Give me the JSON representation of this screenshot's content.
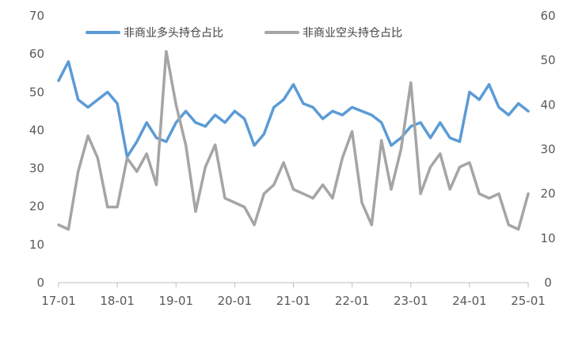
{
  "chart_data": {
    "type": "line",
    "x": [
      "17-01",
      "17-03",
      "17-05",
      "17-07",
      "17-09",
      "17-11",
      "18-01",
      "18-03",
      "18-05",
      "18-07",
      "18-09",
      "18-11",
      "19-01",
      "19-03",
      "19-05",
      "19-07",
      "19-09",
      "19-11",
      "20-01",
      "20-03",
      "20-05",
      "20-07",
      "20-09",
      "20-11",
      "21-01",
      "21-03",
      "21-05",
      "21-07",
      "21-09",
      "21-11",
      "22-01",
      "22-03",
      "22-05",
      "22-07",
      "22-09",
      "22-11",
      "23-01",
      "23-03",
      "23-05",
      "23-07",
      "23-09",
      "23-11",
      "24-01",
      "24-03",
      "24-05",
      "24-07",
      "24-09",
      "24-11",
      "25-01"
    ],
    "x_ticks": [
      "17-01",
      "18-01",
      "19-01",
      "20-01",
      "21-01",
      "22-01",
      "23-01",
      "24-01",
      "25-01"
    ],
    "y_left": {
      "ticks": [
        "0",
        "10",
        "20",
        "30",
        "40",
        "50",
        "60",
        "70"
      ],
      "range": [
        0,
        70
      ]
    },
    "y_right": {
      "ticks": [
        "0",
        "10",
        "20",
        "30",
        "40",
        "50",
        "60"
      ],
      "range": [
        0,
        60
      ]
    },
    "grid": false,
    "legend_position": "top",
    "series": [
      {
        "name": "非商业多头持仓占比",
        "axis": "left",
        "color": "#5B9BD5",
        "values": [
          53,
          58,
          48,
          46,
          48,
          50,
          47,
          33,
          37,
          42,
          38,
          37,
          42,
          45,
          42,
          41,
          44,
          42,
          45,
          43,
          36,
          39,
          46,
          48,
          52,
          47,
          46,
          43,
          45,
          44,
          46,
          45,
          44,
          42,
          36,
          38,
          41,
          42,
          38,
          42,
          38,
          37,
          50,
          48,
          52,
          46,
          44,
          47,
          45
        ]
      },
      {
        "name": "非商业空头持仓占比",
        "axis": "right",
        "color": "#A5A5A5",
        "values": [
          13,
          12,
          25,
          33,
          28,
          17,
          17,
          28,
          25,
          29,
          22,
          52,
          40,
          31,
          16,
          26,
          31,
          19,
          18,
          17,
          13,
          20,
          22,
          27,
          21,
          20,
          19,
          22,
          19,
          28,
          34,
          18,
          13,
          32,
          21,
          30,
          45,
          20,
          26,
          29,
          21,
          26,
          27,
          20,
          19,
          20,
          13,
          12,
          20
        ]
      }
    ]
  }
}
